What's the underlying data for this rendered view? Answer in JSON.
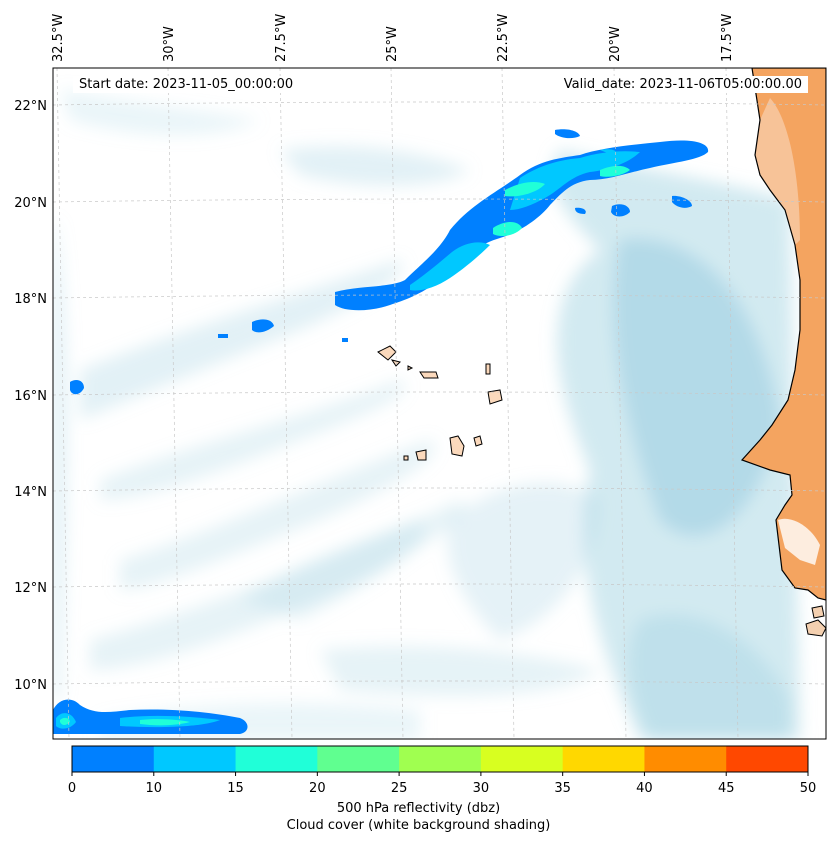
{
  "map": {
    "start_label": "Start date: 2023-11-05_00:00:00",
    "valid_label": "Valid_date: 2023-11-06T05:00:00.00",
    "lon_labels": [
      "32.5°W",
      "30°W",
      "27.5°W",
      "25°W",
      "22.5°W",
      "20°W",
      "17.5°W"
    ],
    "lat_labels": [
      "22°N",
      "20°N",
      "18°N",
      "16°N",
      "14°N",
      "12°N",
      "10°N"
    ],
    "land_color": "#f4a460",
    "cloud_color": "#add8e6",
    "coastline_color": "#000000",
    "gridlines": true
  },
  "colorbar": {
    "ticks": [
      "0",
      "10",
      "15",
      "20",
      "25",
      "30",
      "35",
      "40",
      "45",
      "50"
    ],
    "colors": [
      "#0080ff",
      "#00c8ff",
      "#20ffd8",
      "#60ff90",
      "#a0ff50",
      "#d8ff20",
      "#ffd800",
      "#ff8c00",
      "#ff4800"
    ],
    "label_line1": "500 hPa reflectivity (dbz)",
    "label_line2": "Cloud cover (white background shading)"
  }
}
